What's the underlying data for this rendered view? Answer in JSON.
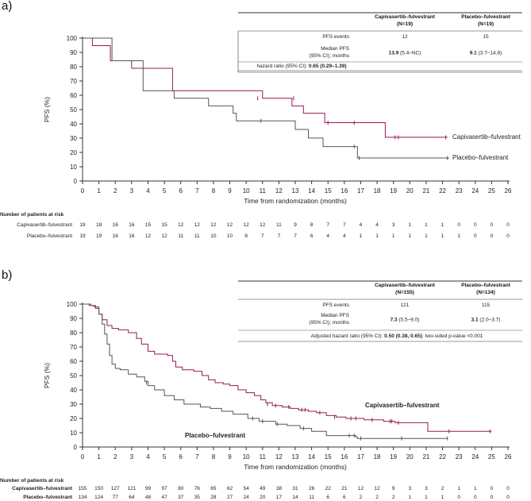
{
  "colors": {
    "capi": "#96185a",
    "placebo": "#555555",
    "axis": "#333333"
  },
  "panels": [
    {
      "label": "a)",
      "table": {
        "col1_header": "Capivasertib–fulvestrant",
        "col1_n": "(N=19)",
        "col2_header": "Placebo–fulvestrant",
        "col2_n": "(N=19)",
        "rows": [
          {
            "label": "PFS events",
            "c1": "12",
            "c2": "15"
          },
          {
            "label": "Median PFS",
            "label2": "(95% CI); months",
            "c1_bold": "13.9",
            "c1_rest": " (5.4–NC)",
            "c2_bold": "9.1",
            "c2_rest": " (3.7–14.8)"
          }
        ],
        "hr_text": "hazard ratio (95% CI): ",
        "hr_bold": "0.65 (0.29–1.39)",
        "hr_rest": ""
      },
      "chart_data": {
        "type": "line",
        "title": "",
        "xlabel": "Time from randomization (months)",
        "ylabel": "PFS (%)",
        "xlim": [
          0,
          26
        ],
        "ylim": [
          0,
          100
        ],
        "x_ticks": [
          "0",
          "1",
          "2",
          "3",
          "4",
          "5",
          "6",
          "7",
          "8",
          "9",
          "10",
          "11",
          "12",
          "13",
          "14",
          "15",
          "16",
          "17",
          "18",
          "19",
          "20",
          "21",
          "22",
          "23",
          "24",
          "25",
          "26"
        ],
        "y_ticks": [
          "0",
          "10",
          "20",
          "30",
          "40",
          "50",
          "60",
          "70",
          "80",
          "90",
          "100"
        ],
        "series": [
          {
            "name": "Capivasertib–fulvestrant",
            "color": "#96185a",
            "steps": [
              [
                0,
                100
              ],
              [
                0.6,
                94.7
              ],
              [
                1.7,
                84.2
              ],
              [
                3,
                78.9
              ],
              [
                5.5,
                63.2
              ],
              [
                11,
                57.9
              ],
              [
                12.8,
                52.6
              ],
              [
                13.5,
                47.4
              ],
              [
                14.8,
                40.8
              ],
              [
                18.5,
                30.6
              ],
              [
                22.3,
                30.6
              ]
            ],
            "censors": [
              [
                10.7,
                57.9
              ],
              [
                12.9,
                57.9
              ],
              [
                15.0,
                40.8
              ],
              [
                16.6,
                40.8
              ],
              [
                19.1,
                30.6
              ],
              [
                19.3,
                30.6
              ],
              [
                22.2,
                30.6
              ]
            ]
          },
          {
            "name": "Placebo–fulvestrant",
            "color": "#555555",
            "steps": [
              [
                0,
                100
              ],
              [
                1.8,
                84.2
              ],
              [
                3.7,
                63.2
              ],
              [
                5.6,
                57.9
              ],
              [
                7.7,
                52.6
              ],
              [
                9.2,
                47.4
              ],
              [
                9.4,
                42.1
              ],
              [
                11.0,
                42.1
              ],
              [
                13.0,
                36.1
              ],
              [
                13.8,
                30.1
              ],
              [
                14.7,
                24.1
              ],
              [
                16.8,
                16.1
              ],
              [
                22.4,
                16.1
              ]
            ],
            "censors": [
              [
                10.9,
                42.1
              ],
              [
                16.6,
                24.1
              ],
              [
                16.9,
                16.1
              ],
              [
                22.3,
                16.1
              ]
            ]
          }
        ],
        "legend": [
          "Capivasertib–fulvestrant",
          "Placebo–fulvestrant"
        ]
      },
      "risk": {
        "title": "Number of patients at risk",
        "rows": [
          {
            "name": "Capivasertib–fulvestrant",
            "values": [
              "19",
              "18",
              "16",
              "16",
              "15",
              "15",
              "12",
              "12",
              "12",
              "12",
              "12",
              "12",
              "11",
              "9",
              "8",
              "7",
              "7",
              "4",
              "4",
              "3",
              "1",
              "1",
              "1",
              "0",
              "0",
              "0",
              "0"
            ]
          },
          {
            "name": "Placebo–fulvestrant",
            "values": [
              "19",
              "19",
              "16",
              "16",
              "12",
              "12",
              "11",
              "11",
              "10",
              "10",
              "8",
              "7",
              "7",
              "7",
              "6",
              "4",
              "4",
              "1",
              "1",
              "1",
              "1",
              "1",
              "1",
              "1",
              "0",
              "0",
              "0"
            ]
          }
        ]
      }
    },
    {
      "label": "b)",
      "table": {
        "col1_header": "Capivasertib–fulvestrant",
        "col1_n": "(N=155)",
        "col2_header": "Placebo–fulvestrant",
        "col2_n": "(N=134)",
        "rows": [
          {
            "label": "PFS events",
            "c1": "121",
            "c2": "115"
          },
          {
            "label": "Median PFS",
            "label2": "(95% CI); months",
            "c1_bold": "7.3",
            "c1_rest": " (5.5–9.0)",
            "c2_bold": "3.1",
            "c2_rest": " (2.0–3.7)"
          }
        ],
        "hr_text": "Adjusted hazard ratio (95% CI): ",
        "hr_bold": "0.50 (0.38, 0.65)",
        "hr_rest": "; two-sided p-value <0.001"
      },
      "chart_data": {
        "type": "line",
        "title": "",
        "xlabel": "Time from randomization (months)",
        "ylabel": "PFS (%)",
        "xlim": [
          0,
          26
        ],
        "ylim": [
          0,
          100
        ],
        "x_ticks": [
          "0",
          "1",
          "2",
          "3",
          "4",
          "5",
          "6",
          "7",
          "8",
          "9",
          "10",
          "11",
          "12",
          "13",
          "14",
          "15",
          "16",
          "17",
          "18",
          "19",
          "20",
          "21",
          "22",
          "23",
          "24",
          "25",
          "26"
        ],
        "y_ticks": [
          "0",
          "10",
          "20",
          "30",
          "40",
          "50",
          "60",
          "70",
          "80",
          "90",
          "100"
        ],
        "series": [
          {
            "name": "Capivasertib–fulvestrant",
            "color": "#96185a",
            "steps": [
              [
                0,
                100
              ],
              [
                0.5,
                99
              ],
              [
                0.8,
                97
              ],
              [
                1.0,
                93
              ],
              [
                1.2,
                89
              ],
              [
                1.5,
                85
              ],
              [
                1.8,
                83
              ],
              [
                2.2,
                82
              ],
              [
                2.8,
                80
              ],
              [
                3.3,
                76
              ],
              [
                3.6,
                72
              ],
              [
                4.0,
                67
              ],
              [
                4.4,
                65
              ],
              [
                5.2,
                64
              ],
              [
                5.5,
                60
              ],
              [
                5.7,
                56
              ],
              [
                6.1,
                54
              ],
              [
                6.8,
                53
              ],
              [
                7.3,
                50
              ],
              [
                7.7,
                47
              ],
              [
                8.1,
                45
              ],
              [
                8.6,
                44
              ],
              [
                9.0,
                43
              ],
              [
                9.5,
                40
              ],
              [
                10.0,
                38
              ],
              [
                10.5,
                36
              ],
              [
                10.9,
                33
              ],
              [
                11.2,
                31
              ],
              [
                11.6,
                29
              ],
              [
                12.2,
                28
              ],
              [
                12.7,
                27
              ],
              [
                13.2,
                26
              ],
              [
                13.8,
                25
              ],
              [
                14.3,
                24
              ],
              [
                14.9,
                22
              ],
              [
                15.5,
                21
              ],
              [
                16.1,
                20
              ],
              [
                17.2,
                19
              ],
              [
                18.4,
                18
              ],
              [
                19.1,
                17
              ],
              [
                20.0,
                17
              ],
              [
                21.1,
                11
              ],
              [
                25.0,
                11
              ]
            ],
            "censors": [
              [
                11.3,
                30
              ],
              [
                11.8,
                29
              ],
              [
                12.6,
                28
              ],
              [
                13.4,
                26
              ],
              [
                13.6,
                26
              ],
              [
                14.5,
                24
              ],
              [
                15.4,
                21
              ],
              [
                16.4,
                20
              ],
              [
                16.7,
                20
              ],
              [
                17.7,
                19
              ],
              [
                18.8,
                18
              ],
              [
                18.9,
                18
              ],
              [
                19.3,
                17
              ],
              [
                22.4,
                11
              ],
              [
                24.9,
                11
              ]
            ]
          },
          {
            "name": "Placebo–fulvestrant",
            "color": "#555555",
            "steps": [
              [
                0,
                100
              ],
              [
                0.4,
                99
              ],
              [
                0.7,
                98
              ],
              [
                1.0,
                93
              ],
              [
                1.2,
                86
              ],
              [
                1.35,
                79
              ],
              [
                1.5,
                72
              ],
              [
                1.65,
                64
              ],
              [
                1.8,
                58
              ],
              [
                2.0,
                55
              ],
              [
                2.3,
                54
              ],
              [
                2.8,
                51
              ],
              [
                3.3,
                49
              ],
              [
                3.8,
                46
              ],
              [
                4.0,
                43
              ],
              [
                4.4,
                40
              ],
              [
                5.0,
                36
              ],
              [
                5.6,
                33
              ],
              [
                6.2,
                30
              ],
              [
                7.2,
                28
              ],
              [
                7.8,
                27
              ],
              [
                8.5,
                25
              ],
              [
                9.2,
                23
              ],
              [
                10.1,
                20
              ],
              [
                10.8,
                18
              ],
              [
                11.8,
                16
              ],
              [
                12.5,
                15
              ],
              [
                13.3,
                13
              ],
              [
                14.0,
                11
              ],
              [
                14.9,
                8
              ],
              [
                16.7,
                7
              ],
              [
                16.8,
                6
              ],
              [
                22.3,
                6
              ]
            ],
            "censors": [
              [
                3.9,
                45
              ],
              [
                10.4,
                20
              ],
              [
                11.0,
                18
              ],
              [
                11.9,
                16
              ],
              [
                13.5,
                13
              ],
              [
                16.3,
                8
              ],
              [
                16.6,
                8
              ],
              [
                17.0,
                6
              ],
              [
                19.5,
                6
              ],
              [
                22.3,
                6
              ]
            ]
          }
        ],
        "legend": [
          "Capivasertib–fulvestrant",
          "Placebo–fulvestrant"
        ]
      },
      "risk": {
        "title": "Number of patients at risk",
        "rows": [
          {
            "name": "Capivasertib–fulvestrant",
            "values": [
              "155",
              "150",
              "127",
              "121",
              "99",
              "97",
              "80",
              "76",
              "65",
              "62",
              "54",
              "49",
              "38",
              "31",
              "26",
              "22",
              "21",
              "12",
              "12",
              "9",
              "3",
              "3",
              "2",
              "1",
              "1",
              "0",
              "0"
            ]
          },
          {
            "name": "Placebo–fulvestrant",
            "values": [
              "134",
              "124",
              "77",
              "64",
              "48",
              "47",
              "37",
              "35",
              "28",
              "27",
              "24",
              "20",
              "17",
              "14",
              "11",
              "6",
              "6",
              "2",
              "2",
              "2",
              "1",
              "1",
              "1",
              "0",
              "0",
              "0",
              "0"
            ]
          }
        ]
      }
    }
  ]
}
